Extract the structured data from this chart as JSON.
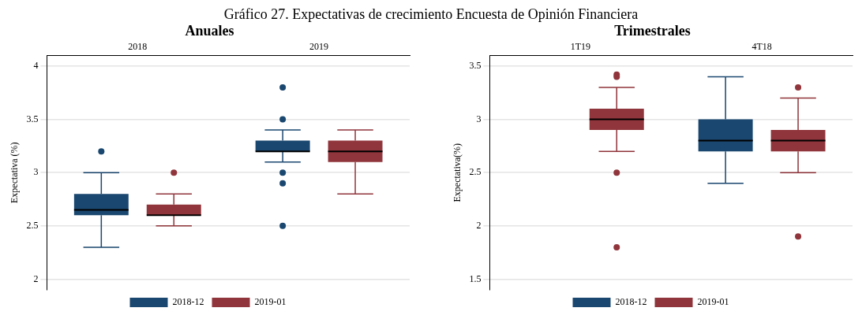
{
  "chart_data": [
    {
      "type": "box",
      "title": "Gráfico 27. Expectativas de crecimiento Encuesta de Opinión Financiera",
      "subtitle": "Anuales",
      "ylabel": "Expectativa (%)",
      "categories": [
        "2018",
        "2019"
      ],
      "ylim": [
        1.9,
        4.1
      ],
      "yticks": [
        2,
        2.5,
        3,
        3.5,
        4
      ],
      "grid": "y",
      "legend": "bottom",
      "series": [
        {
          "name": "2018-12",
          "color": "#1a476f",
          "boxes": [
            {
              "low": 2.3,
              "q1": 2.6,
              "median": 2.65,
              "q3": 2.8,
              "high": 3.0,
              "outliers": [
                3.2
              ]
            },
            {
              "low": 3.1,
              "q1": 3.2,
              "median": 3.2,
              "q3": 3.3,
              "high": 3.4,
              "outliers": [
                3.8,
                3.5,
                3.0,
                2.9,
                2.5
              ]
            }
          ]
        },
        {
          "name": "2019-01",
          "color": "#90353b",
          "boxes": [
            {
              "low": 2.5,
              "q1": 2.6,
              "median": 2.6,
              "q3": 2.7,
              "high": 2.8,
              "outliers": [
                3.0
              ]
            },
            {
              "low": 2.8,
              "q1": 3.1,
              "median": 3.2,
              "q3": 3.3,
              "high": 3.4
            }
          ]
        }
      ]
    },
    {
      "type": "box",
      "subtitle": "Trimestrales",
      "ylabel": "Expectativa(%)",
      "categories": [
        "1T19",
        "4T18"
      ],
      "ylim": [
        1.4,
        3.6
      ],
      "yticks": [
        1.5,
        2,
        2.5,
        3,
        3.5
      ],
      "grid": "y",
      "legend": "bottom",
      "series": [
        {
          "name": "2018-12",
          "color": "#1a476f",
          "boxes": [
            null,
            {
              "low": 2.4,
              "q1": 2.7,
              "median": 2.8,
              "q3": 3.0,
              "high": 3.4
            }
          ]
        },
        {
          "name": "2019-01",
          "color": "#90353b",
          "boxes": [
            {
              "low": 2.7,
              "q1": 2.9,
              "median": 3.0,
              "q3": 3.1,
              "high": 3.3,
              "outliers": [
                3.42,
                3.4,
                2.5,
                1.8
              ]
            },
            {
              "low": 2.5,
              "q1": 2.7,
              "median": 2.8,
              "q3": 2.9,
              "high": 3.2,
              "outliers": [
                3.3,
                1.9
              ]
            }
          ]
        }
      ]
    }
  ]
}
